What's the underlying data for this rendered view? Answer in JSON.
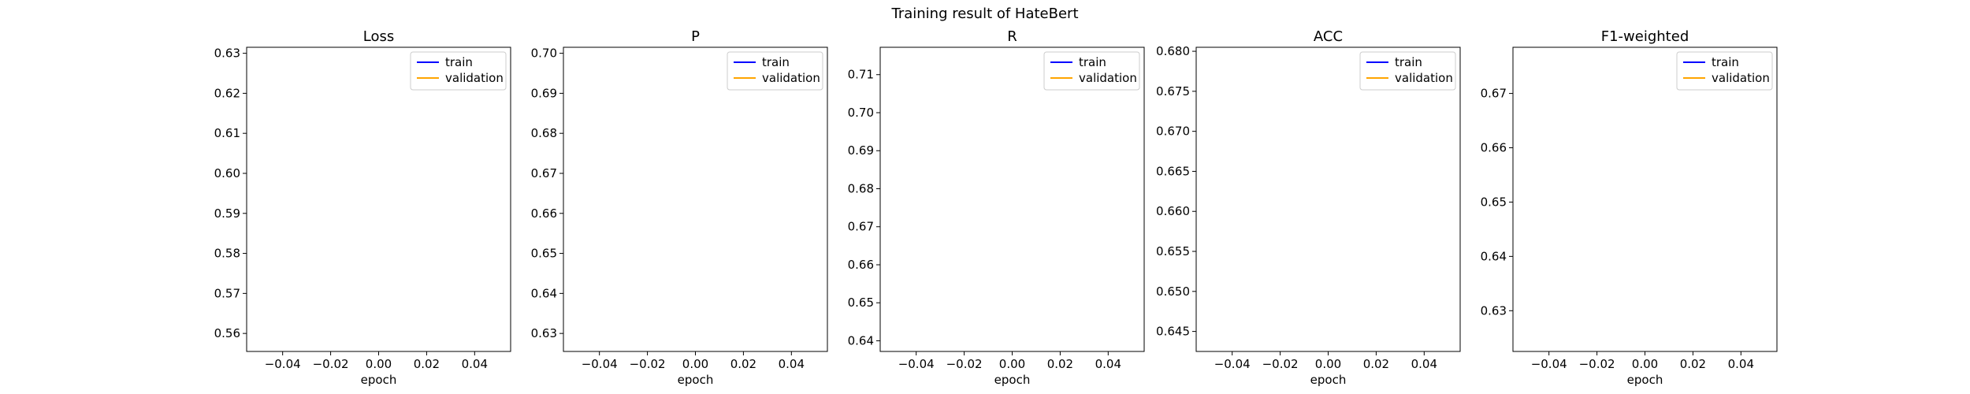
{
  "figure": {
    "title": "Training result of HateBert"
  },
  "chart_data": [
    {
      "type": "line",
      "title": "Loss",
      "xlabel": "epoch",
      "ylabel": "",
      "xlim": [
        -0.055,
        0.055
      ],
      "ylim": [
        0.5555,
        0.6315
      ],
      "xticks": [
        -0.04,
        -0.02,
        0.0,
        0.02,
        0.04
      ],
      "xtick_labels": [
        "−0.04",
        "−0.02",
        "0.00",
        "0.02",
        "0.04"
      ],
      "yticks": [
        0.56,
        0.57,
        0.58,
        0.59,
        0.6,
        0.61,
        0.62,
        0.63
      ],
      "ytick_labels": [
        "0.56",
        "0.57",
        "0.58",
        "0.59",
        "0.60",
        "0.61",
        "0.62",
        "0.63"
      ],
      "grid": false,
      "legend": "top-right",
      "series": [
        {
          "name": "train",
          "color": "#0000ff",
          "x": [],
          "y": []
        },
        {
          "name": "validation",
          "color": "#ffa500",
          "x": [],
          "y": []
        }
      ]
    },
    {
      "type": "line",
      "title": "P",
      "xlabel": "epoch",
      "ylabel": "",
      "xlim": [
        -0.055,
        0.055
      ],
      "ylim": [
        0.6255,
        0.7015
      ],
      "xticks": [
        -0.04,
        -0.02,
        0.0,
        0.02,
        0.04
      ],
      "xtick_labels": [
        "−0.04",
        "−0.02",
        "0.00",
        "0.02",
        "0.04"
      ],
      "yticks": [
        0.63,
        0.64,
        0.65,
        0.66,
        0.67,
        0.68,
        0.69,
        0.7
      ],
      "ytick_labels": [
        "0.63",
        "0.64",
        "0.65",
        "0.66",
        "0.67",
        "0.68",
        "0.69",
        "0.70"
      ],
      "grid": false,
      "legend": "top-right",
      "series": [
        {
          "name": "train",
          "color": "#0000ff",
          "x": [],
          "y": []
        },
        {
          "name": "validation",
          "color": "#ffa500",
          "x": [],
          "y": []
        }
      ]
    },
    {
      "type": "line",
      "title": "R",
      "xlabel": "epoch",
      "ylabel": "",
      "xlim": [
        -0.055,
        0.055
      ],
      "ylim": [
        0.6372,
        0.7172
      ],
      "xticks": [
        -0.04,
        -0.02,
        0.0,
        0.02,
        0.04
      ],
      "xtick_labels": [
        "−0.04",
        "−0.02",
        "0.00",
        "0.02",
        "0.04"
      ],
      "yticks": [
        0.64,
        0.65,
        0.66,
        0.67,
        0.68,
        0.69,
        0.7,
        0.71
      ],
      "ytick_labels": [
        "0.64",
        "0.65",
        "0.66",
        "0.67",
        "0.68",
        "0.69",
        "0.70",
        "0.71"
      ],
      "grid": false,
      "legend": "top-right",
      "series": [
        {
          "name": "train",
          "color": "#0000ff",
          "x": [],
          "y": []
        },
        {
          "name": "validation",
          "color": "#ffa500",
          "x": [],
          "y": []
        }
      ]
    },
    {
      "type": "line",
      "title": "ACC",
      "xlabel": "epoch",
      "ylabel": "",
      "xlim": [
        -0.055,
        0.055
      ],
      "ylim": [
        0.6425,
        0.6805
      ],
      "xticks": [
        -0.04,
        -0.02,
        0.0,
        0.02,
        0.04
      ],
      "xtick_labels": [
        "−0.04",
        "−0.02",
        "0.00",
        "0.02",
        "0.04"
      ],
      "yticks": [
        0.645,
        0.65,
        0.655,
        0.66,
        0.665,
        0.67,
        0.675,
        0.68
      ],
      "ytick_labels": [
        "0.645",
        "0.650",
        "0.655",
        "0.660",
        "0.665",
        "0.670",
        "0.675",
        "0.680"
      ],
      "grid": false,
      "legend": "top-right",
      "series": [
        {
          "name": "train",
          "color": "#0000ff",
          "x": [],
          "y": []
        },
        {
          "name": "validation",
          "color": "#ffa500",
          "x": [],
          "y": []
        }
      ]
    },
    {
      "type": "line",
      "title": "F1-weighted",
      "xlabel": "epoch",
      "ylabel": "",
      "xlim": [
        -0.055,
        0.055
      ],
      "ylim": [
        0.6225,
        0.6785
      ],
      "xticks": [
        -0.04,
        -0.02,
        0.0,
        0.02,
        0.04
      ],
      "xtick_labels": [
        "−0.04",
        "−0.02",
        "0.00",
        "0.02",
        "0.04"
      ],
      "yticks": [
        0.63,
        0.64,
        0.65,
        0.66,
        0.67
      ],
      "ytick_labels": [
        "0.63",
        "0.64",
        "0.65",
        "0.66",
        "0.67"
      ],
      "grid": false,
      "legend": "top-right",
      "series": [
        {
          "name": "train",
          "color": "#0000ff",
          "x": [],
          "y": []
        },
        {
          "name": "validation",
          "color": "#ffa500",
          "x": [],
          "y": []
        }
      ]
    }
  ]
}
